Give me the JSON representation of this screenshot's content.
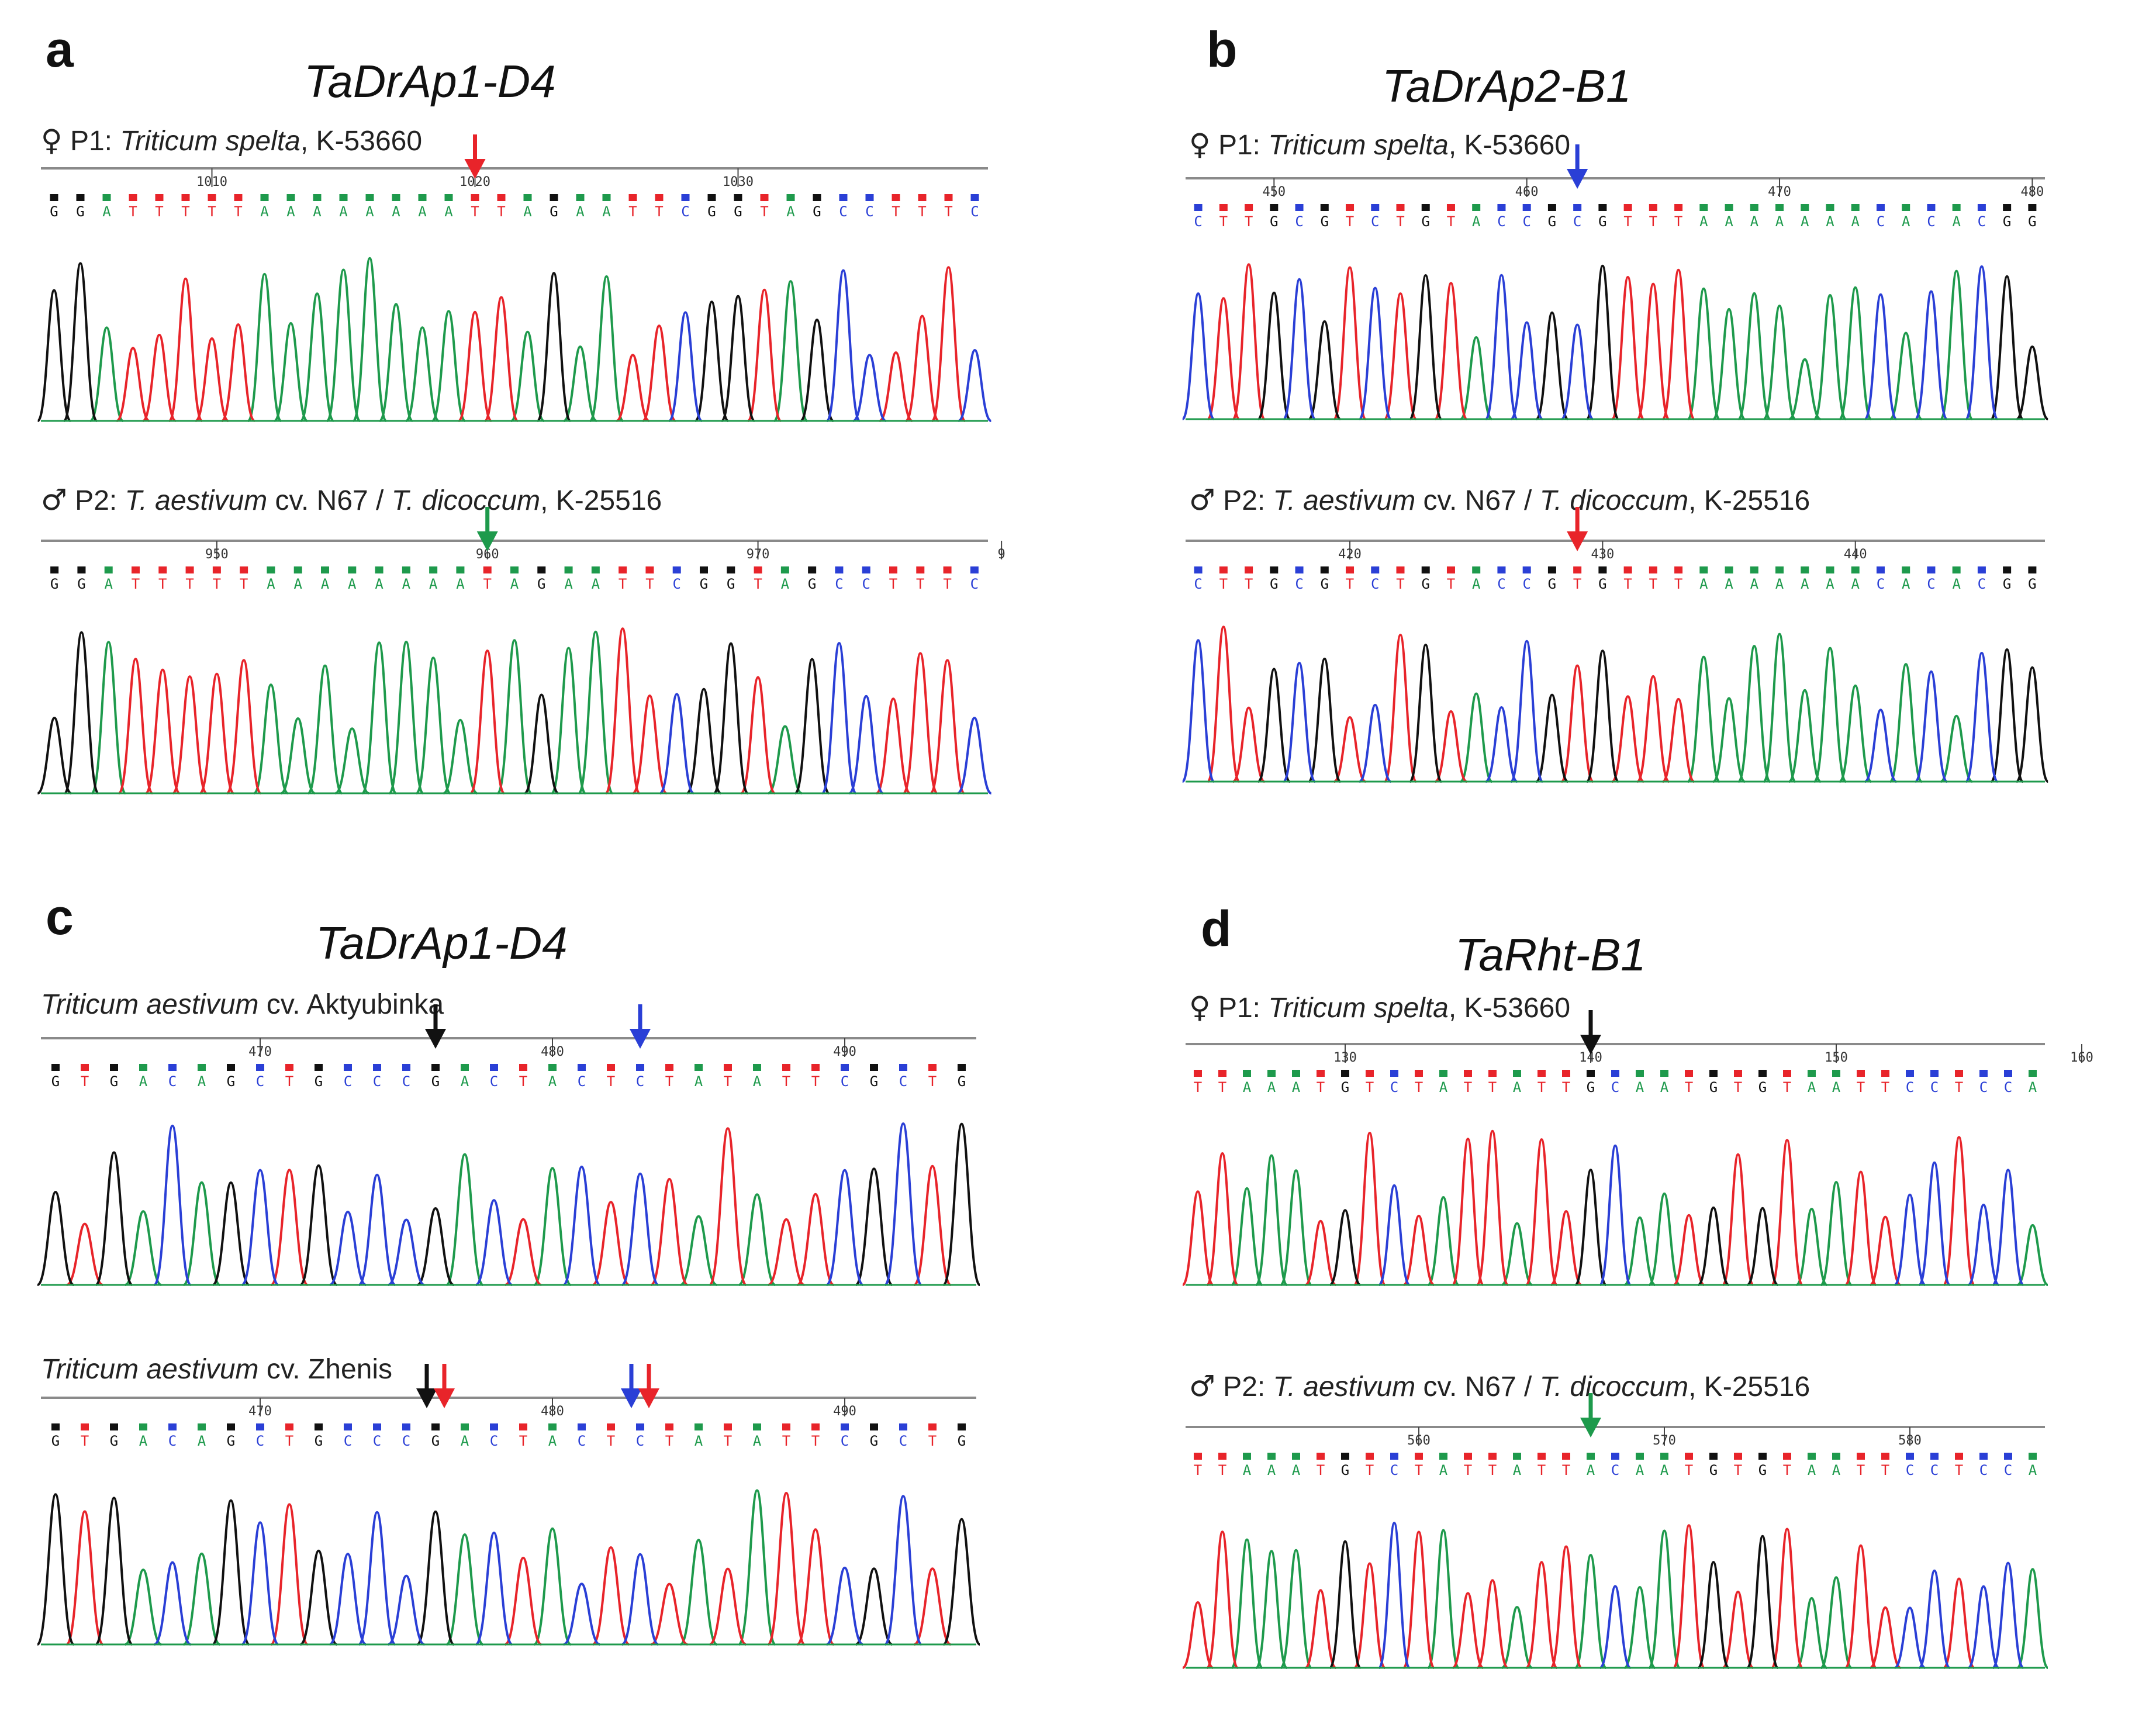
{
  "panels": [
    {
      "letter": "a",
      "title": "TaDrAp1-D4",
      "traces": [
        {
          "symbol": "♀",
          "prefix": "P1: ",
          "italic1": "Triticum spelta",
          "mid": "",
          "italic2": "",
          "suffix": ", K-53660",
          "sequence": "GGATTTTTAAAAAAAATTAGAATTCGGTAGCCTTTC",
          "ticks": [
            {
              "index": 6,
              "label": "1010"
            },
            {
              "index": 16,
              "label": "1020"
            },
            {
              "index": 26,
              "label": "1030"
            }
          ],
          "arrows": [
            {
              "index": 16,
              "color": "#e8242a"
            }
          ]
        },
        {
          "symbol": "♂",
          "prefix": "P2: ",
          "italic1": "T. aestivum",
          "mid": " cv. N67 / ",
          "italic2": "T. dicoccum",
          "suffix": ", K-25516",
          "sequence": "GGATTTTTAAAAAAAATAGAATTCGGTAGCCTTTC",
          "ticks": [
            {
              "index": 6,
              "label": "950"
            },
            {
              "index": 16,
              "label": "960"
            },
            {
              "index": 26,
              "label": "970"
            },
            {
              "index": 35,
              "label": "9"
            }
          ],
          "arrows": [
            {
              "index": 16,
              "color": "#1e9a4c"
            }
          ]
        }
      ]
    },
    {
      "letter": "b",
      "title": "TaDrAp2-B1",
      "traces": [
        {
          "symbol": "♀",
          "prefix": "P1: ",
          "italic1": "Triticum spelta",
          "mid": "",
          "italic2": "",
          "suffix": ", K-53660",
          "sequence": "CTTGCGTCTGTACCGCGTTTAAAAAAACACACGG",
          "ticks": [
            {
              "index": 3,
              "label": "450"
            },
            {
              "index": 13,
              "label": "460"
            },
            {
              "index": 23,
              "label": "470"
            },
            {
              "index": 33,
              "label": "480"
            }
          ],
          "arrows": [
            {
              "index": 15,
              "color": "#2a3fd6"
            }
          ]
        },
        {
          "symbol": "♂",
          "prefix": "P2: ",
          "italic1": "T. aestivum",
          "mid": " cv. N67 / ",
          "italic2": "T. dicoccum",
          "suffix": ", K-25516",
          "sequence": "CTTGCGTCTGTACCGTGTTTAAAAAAACACACGG",
          "ticks": [
            {
              "index": 6,
              "label": "420"
            },
            {
              "index": 16,
              "label": "430"
            },
            {
              "index": 26,
              "label": "440"
            }
          ],
          "arrows": [
            {
              "index": 15,
              "color": "#e8242a"
            }
          ]
        }
      ]
    },
    {
      "letter": "c",
      "title": "TaDrAp1-D4",
      "traces": [
        {
          "symbol": "",
          "prefix": "",
          "italic1": "Triticum aestivum",
          "mid": " cv. Aktyubinka",
          "italic2": "",
          "suffix": "",
          "sequence": "GTGACAGCTGCCCGACTACTCTATATTCGCTG",
          "ticks": [
            {
              "index": 7,
              "label": "470"
            },
            {
              "index": 17,
              "label": "480"
            },
            {
              "index": 27,
              "label": "490"
            }
          ],
          "arrows": [
            {
              "index": 13,
              "color": "#111111"
            },
            {
              "index": 20,
              "color": "#2a3fd6"
            }
          ]
        },
        {
          "symbol": "",
          "prefix": "",
          "italic1": "Triticum aestivum",
          "mid": " cv. Zhenis",
          "italic2": "",
          "suffix": "",
          "sequence": "GTGACAGCTGCCCGACTACTCTATATTCGCTG",
          "ticks": [
            {
              "index": 7,
              "label": "470"
            },
            {
              "index": 17,
              "label": "480"
            },
            {
              "index": 27,
              "label": "490"
            }
          ],
          "arrows": [
            {
              "index": 12.7,
              "color": "#111111"
            },
            {
              "index": 13.3,
              "color": "#e8242a"
            },
            {
              "index": 19.7,
              "color": "#2a3fd6"
            },
            {
              "index": 20.3,
              "color": "#e8242a"
            }
          ]
        }
      ]
    },
    {
      "letter": "d",
      "title": "TaRht-B1",
      "traces": [
        {
          "symbol": "♀",
          "prefix": "P1: ",
          "italic1": "Triticum spelta",
          "mid": "",
          "italic2": "",
          "suffix": ", K-53660",
          "sequence": "TTAAATGTCTATTATTGCAATGTGTAATTCCTCCA",
          "ticks": [
            {
              "index": 6,
              "label": "130"
            },
            {
              "index": 16,
              "label": "140"
            },
            {
              "index": 26,
              "label": "150"
            },
            {
              "index": 36,
              "label": "160"
            }
          ],
          "arrows": [
            {
              "index": 16,
              "color": "#111111"
            }
          ]
        },
        {
          "symbol": "♂",
          "prefix": "P2: ",
          "italic1": "T. aestivum",
          "mid": " cv. N67 / ",
          "italic2": "T. dicoccum",
          "suffix": ", K-25516",
          "sequence": "TTAAATGTCTATTATTACAATGTGTAATTCCTCCA",
          "ticks": [
            {
              "index": 9,
              "label": "560"
            },
            {
              "index": 19,
              "label": "570"
            },
            {
              "index": 29,
              "label": "580"
            }
          ],
          "arrows": [
            {
              "index": 16,
              "color": "#1e9a4c"
            }
          ]
        }
      ]
    }
  ],
  "base_colors": {
    "A": "#1e9a4c",
    "T": "#e8242a",
    "G": "#111111",
    "C": "#2a3fd6"
  }
}
